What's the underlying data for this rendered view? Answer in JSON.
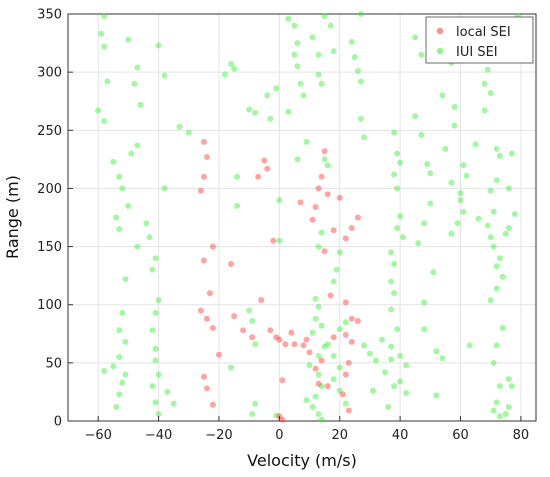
{
  "chart_data": {
    "type": "scatter",
    "title": "",
    "xlabel": "Velocity (m/s)",
    "ylabel": "Range (m)",
    "xlim": [
      -70,
      85
    ],
    "ylim": [
      0,
      350
    ],
    "xticks": [
      -60,
      -40,
      -20,
      0,
      20,
      40,
      60,
      80
    ],
    "yticks": [
      0,
      50,
      100,
      150,
      200,
      250,
      300,
      350
    ],
    "grid": true,
    "legend_position": "top-right",
    "series": [
      {
        "name": "local SEI",
        "color": "#ff3333",
        "points": [
          [
            -25,
            240
          ],
          [
            -24,
            227
          ],
          [
            -25,
            210
          ],
          [
            -26,
            198
          ],
          [
            -22,
            150
          ],
          [
            -25,
            138
          ],
          [
            -23,
            110
          ],
          [
            -26,
            95
          ],
          [
            -24,
            88
          ],
          [
            -22,
            80
          ],
          [
            -20,
            57
          ],
          [
            -25,
            38
          ],
          [
            -24,
            28
          ],
          [
            -22,
            14
          ],
          [
            -16,
            135
          ],
          [
            -15,
            90
          ],
          [
            -12,
            78
          ],
          [
            -9,
            72
          ],
          [
            -5,
            224
          ],
          [
            -4,
            217
          ],
          [
            -7,
            210
          ],
          [
            -2,
            155
          ],
          [
            -6,
            104
          ],
          [
            -3,
            78
          ],
          [
            -1,
            72
          ],
          [
            0,
            70
          ],
          [
            2,
            66
          ],
          [
            4,
            76
          ],
          [
            1,
            35
          ],
          [
            0,
            4
          ],
          [
            1,
            1
          ],
          [
            7,
            188
          ],
          [
            9,
            70
          ],
          [
            8,
            65
          ],
          [
            5,
            66
          ],
          [
            10,
            59
          ],
          [
            14,
            52
          ],
          [
            12,
            45
          ],
          [
            13,
            32
          ],
          [
            15,
            232
          ],
          [
            14,
            210
          ],
          [
            13,
            200
          ],
          [
            12,
            184
          ],
          [
            11,
            173
          ],
          [
            16,
            195
          ],
          [
            18,
            164
          ],
          [
            15,
            146
          ],
          [
            17,
            108
          ],
          [
            18,
            72
          ],
          [
            16,
            30
          ],
          [
            20,
            192
          ],
          [
            22,
            157
          ],
          [
            24,
            166
          ],
          [
            26,
            175
          ],
          [
            22,
            102
          ],
          [
            24,
            88
          ],
          [
            26,
            86
          ],
          [
            22,
            74
          ],
          [
            24,
            68
          ],
          [
            23,
            50
          ],
          [
            22,
            40
          ],
          [
            21,
            23
          ],
          [
            23,
            9
          ]
        ]
      },
      {
        "name": "IUI SEI",
        "color": "#33ee33",
        "points": [
          [
            -58,
            348
          ],
          [
            -59,
            333
          ],
          [
            -58,
            322
          ],
          [
            -57,
            292
          ],
          [
            -60,
            267
          ],
          [
            -58,
            258
          ],
          [
            -55,
            223
          ],
          [
            -53,
            210
          ],
          [
            -52,
            200
          ],
          [
            -54,
            175
          ],
          [
            -53,
            165
          ],
          [
            -51,
            122
          ],
          [
            -52,
            93
          ],
          [
            -53,
            78
          ],
          [
            -51,
            68
          ],
          [
            -53,
            55
          ],
          [
            -55,
            47
          ],
          [
            -51,
            40
          ],
          [
            -52,
            33
          ],
          [
            -53,
            23
          ],
          [
            -54,
            12
          ],
          [
            -58,
            43
          ],
          [
            -50,
            328
          ],
          [
            -47,
            304
          ],
          [
            -48,
            290
          ],
          [
            -46,
            272
          ],
          [
            -49,
            230
          ],
          [
            -47,
            237
          ],
          [
            -50,
            185
          ],
          [
            -47,
            150
          ],
          [
            -44,
            170
          ],
          [
            -43,
            158
          ],
          [
            -41,
            140
          ],
          [
            -42,
            130
          ],
          [
            -40,
            104
          ],
          [
            -41,
            93
          ],
          [
            -42,
            78
          ],
          [
            -41,
            62
          ],
          [
            -41,
            52
          ],
          [
            -40,
            40
          ],
          [
            -42,
            30
          ],
          [
            -41,
            16
          ],
          [
            -40,
            6
          ],
          [
            -40,
            323
          ],
          [
            -38,
            297
          ],
          [
            -38,
            200
          ],
          [
            -37,
            25
          ],
          [
            -35,
            15
          ],
          [
            -33,
            253
          ],
          [
            -30,
            248
          ],
          [
            -18,
            298
          ],
          [
            -16,
            307
          ],
          [
            -15,
            303
          ],
          [
            -14,
            210
          ],
          [
            -14,
            185
          ],
          [
            -16,
            46
          ],
          [
            -10,
            95
          ],
          [
            -9,
            86
          ],
          [
            -8,
            66
          ],
          [
            -8,
            15
          ],
          [
            -9,
            6
          ],
          [
            -10,
            268
          ],
          [
            -8,
            265
          ],
          [
            -4,
            280
          ],
          [
            -3,
            260
          ],
          [
            -1,
            286
          ],
          [
            0,
            190
          ],
          [
            0,
            155
          ],
          [
            -1,
            5
          ],
          [
            3,
            346
          ],
          [
            5,
            340
          ],
          [
            6,
            325
          ],
          [
            5,
            315
          ],
          [
            6,
            305
          ],
          [
            7,
            290
          ],
          [
            8,
            280
          ],
          [
            3,
            266
          ],
          [
            9,
            240
          ],
          [
            6,
            225
          ],
          [
            11,
            330
          ],
          [
            13,
            315
          ],
          [
            13,
            298
          ],
          [
            14,
            290
          ],
          [
            15,
            348
          ],
          [
            17,
            340
          ],
          [
            18,
            318
          ],
          [
            15,
            225
          ],
          [
            16,
            220
          ],
          [
            14,
            162
          ],
          [
            13,
            150
          ],
          [
            12,
            105
          ],
          [
            13,
            98
          ],
          [
            12,
            88
          ],
          [
            14,
            82
          ],
          [
            11,
            76
          ],
          [
            15,
            64
          ],
          [
            13,
            56
          ],
          [
            10,
            48
          ],
          [
            13,
            40
          ],
          [
            14,
            30
          ],
          [
            12,
            21
          ],
          [
            11,
            12
          ],
          [
            13,
            6
          ],
          [
            14,
            1
          ],
          [
            9,
            18
          ],
          [
            19,
            130
          ],
          [
            18,
            120
          ],
          [
            20,
            145
          ],
          [
            20,
            79
          ],
          [
            16,
            66
          ],
          [
            18,
            56
          ],
          [
            20,
            46
          ],
          [
            18,
            36
          ],
          [
            20,
            26
          ],
          [
            22,
            15
          ],
          [
            24,
            326
          ],
          [
            25,
            313
          ],
          [
            26,
            301
          ],
          [
            27,
            350
          ],
          [
            27,
            292
          ],
          [
            27,
            260
          ],
          [
            28,
            244
          ],
          [
            22,
            85
          ],
          [
            28,
            65
          ],
          [
            30,
            58
          ],
          [
            32,
            52
          ],
          [
            31,
            26
          ],
          [
            34,
            70
          ],
          [
            37,
            64
          ],
          [
            37,
            53
          ],
          [
            35,
            42
          ],
          [
            38,
            30
          ],
          [
            36,
            12
          ],
          [
            38,
            248
          ],
          [
            39,
            230
          ],
          [
            40,
            222
          ],
          [
            38,
            212
          ],
          [
            39,
            200
          ],
          [
            40,
            176
          ],
          [
            39,
            166
          ],
          [
            41,
            158
          ],
          [
            37,
            145
          ],
          [
            38,
            135
          ],
          [
            37,
            120
          ],
          [
            38,
            110
          ],
          [
            37,
            96
          ],
          [
            39,
            79
          ],
          [
            40,
            56
          ],
          [
            42,
            48
          ],
          [
            40,
            34
          ],
          [
            42,
            24
          ],
          [
            45,
            330
          ],
          [
            47,
            315
          ],
          [
            45,
            262
          ],
          [
            47,
            246
          ],
          [
            49,
            221
          ],
          [
            50,
            213
          ],
          [
            46,
            153
          ],
          [
            48,
            170
          ],
          [
            50,
            187
          ],
          [
            48,
            102
          ],
          [
            51,
            128
          ],
          [
            48,
            79
          ],
          [
            52,
            60
          ],
          [
            54,
            54
          ],
          [
            52,
            22
          ],
          [
            55,
            333
          ],
          [
            57,
            308
          ],
          [
            54,
            280
          ],
          [
            58,
            270
          ],
          [
            55,
            234
          ],
          [
            57,
            205
          ],
          [
            60,
            190
          ],
          [
            61,
            180
          ],
          [
            59,
            170
          ],
          [
            60,
            196
          ],
          [
            62,
            211
          ],
          [
            61,
            220
          ],
          [
            57,
            161
          ],
          [
            58,
            254
          ],
          [
            64,
            316
          ],
          [
            65,
            238
          ],
          [
            66,
            174
          ],
          [
            63,
            65
          ],
          [
            67,
            340
          ],
          [
            69,
            302
          ],
          [
            68,
            290
          ],
          [
            70,
            282
          ],
          [
            68,
            267
          ],
          [
            72,
            234
          ],
          [
            73,
            228
          ],
          [
            72,
            207
          ],
          [
            70,
            198
          ],
          [
            71,
            180
          ],
          [
            69,
            168
          ],
          [
            70,
            158
          ],
          [
            71,
            150
          ],
          [
            73,
            140
          ],
          [
            72,
            133
          ],
          [
            74,
            124
          ],
          [
            72,
            114
          ],
          [
            70,
            104
          ],
          [
            74,
            80
          ],
          [
            72,
            65
          ],
          [
            71,
            50
          ],
          [
            73,
            30
          ],
          [
            72,
            16
          ],
          [
            71,
            9
          ],
          [
            73,
            4
          ],
          [
            76,
            36
          ],
          [
            77,
            30
          ],
          [
            76,
            12
          ],
          [
            75,
            6
          ],
          [
            79,
            348
          ],
          [
            77,
            230
          ],
          [
            78,
            178
          ],
          [
            76,
            166
          ],
          [
            75,
            161
          ],
          [
            76,
            200
          ]
        ]
      }
    ]
  }
}
